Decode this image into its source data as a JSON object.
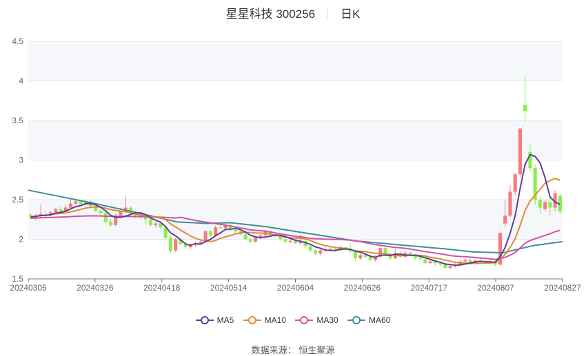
{
  "header": {
    "title": "星星科技 300256",
    "period": "日K"
  },
  "source": {
    "label": "数据来源：",
    "value": "恒生聚源"
  },
  "legend": [
    {
      "name": "MA5",
      "color": "#5b3f99"
    },
    {
      "name": "MA10",
      "color": "#e08a38"
    },
    {
      "name": "MA30",
      "color": "#d44fa2"
    },
    {
      "name": "MA60",
      "color": "#3f8f95"
    }
  ],
  "colors": {
    "up": "#f47c7c",
    "down": "#87f04b",
    "grid": "#e3e7f0",
    "band": "#f5f7fb",
    "axis": "#6e7079"
  },
  "chart_data": {
    "type": "candlestick",
    "title": "星星科技 300256 日K",
    "xlabel": "",
    "ylabel": "",
    "ylim": [
      1.5,
      4.5
    ],
    "yticks": [
      1.5,
      2,
      2.5,
      3,
      3.5,
      4,
      4.5
    ],
    "xticks": [
      "20240305",
      "20240326",
      "20240418",
      "20240514",
      "20240604",
      "20240626",
      "20240717",
      "20240807",
      "20240827"
    ],
    "legend": [
      "MA5",
      "MA10",
      "MA30",
      "MA60"
    ],
    "legend_position": "bottom",
    "grid": true,
    "candles_ohlc_note": "[open, close, low, high] approximated from pixels",
    "candles": [
      [
        2.31,
        2.28,
        2.25,
        2.33
      ],
      [
        2.27,
        2.3,
        2.24,
        2.32
      ],
      [
        2.3,
        2.32,
        2.28,
        2.44
      ],
      [
        2.32,
        2.31,
        2.28,
        2.35
      ],
      [
        2.31,
        2.34,
        2.29,
        2.36
      ],
      [
        2.34,
        2.38,
        2.32,
        2.4
      ],
      [
        2.38,
        2.35,
        2.33,
        2.42
      ],
      [
        2.35,
        2.4,
        2.34,
        2.44
      ],
      [
        2.4,
        2.45,
        2.38,
        2.52
      ],
      [
        2.45,
        2.48,
        2.43,
        2.5
      ],
      [
        2.48,
        2.44,
        2.42,
        2.5
      ],
      [
        2.44,
        2.47,
        2.42,
        2.49
      ],
      [
        2.47,
        2.42,
        2.4,
        2.5
      ],
      [
        2.42,
        2.36,
        2.34,
        2.44
      ],
      [
        2.36,
        2.33,
        2.3,
        2.38
      ],
      [
        2.33,
        2.22,
        2.2,
        2.35
      ],
      [
        2.22,
        2.18,
        2.16,
        2.26
      ],
      [
        2.18,
        2.3,
        2.17,
        2.32
      ],
      [
        2.3,
        2.36,
        2.28,
        2.4
      ],
      [
        2.36,
        2.4,
        2.33,
        2.55
      ],
      [
        2.4,
        2.33,
        2.31,
        2.42
      ],
      [
        2.33,
        2.28,
        2.26,
        2.36
      ],
      [
        2.28,
        2.3,
        2.25,
        2.32
      ],
      [
        2.3,
        2.25,
        2.18,
        2.31
      ],
      [
        2.25,
        2.18,
        2.16,
        2.27
      ],
      [
        2.18,
        2.2,
        2.15,
        2.22
      ],
      [
        2.2,
        2.15,
        2.13,
        2.22
      ],
      [
        2.15,
        2.02,
        2.0,
        2.17
      ],
      [
        2.02,
        1.85,
        1.83,
        2.05
      ],
      [
        1.86,
        2.0,
        1.84,
        2.02
      ],
      [
        2.0,
        1.94,
        1.92,
        2.02
      ],
      [
        1.94,
        1.9,
        1.88,
        1.96
      ],
      [
        1.9,
        1.93,
        1.88,
        1.95
      ],
      [
        1.93,
        1.95,
        1.9,
        1.97
      ],
      [
        1.95,
        1.97,
        1.93,
        2.0
      ],
      [
        1.97,
        2.1,
        1.96,
        2.12
      ],
      [
        2.1,
        2.05,
        2.03,
        2.12
      ],
      [
        2.05,
        2.15,
        2.04,
        2.17
      ],
      [
        2.15,
        2.14,
        2.12,
        2.18
      ],
      [
        2.14,
        2.18,
        2.12,
        2.2
      ],
      [
        2.18,
        2.12,
        2.1,
        2.2
      ],
      [
        2.12,
        2.1,
        2.08,
        2.14
      ],
      [
        2.1,
        2.06,
        2.05,
        2.12
      ],
      [
        2.06,
        2.0,
        1.98,
        2.08
      ],
      [
        2.0,
        1.97,
        1.95,
        2.02
      ],
      [
        1.97,
        2.02,
        1.96,
        2.04
      ],
      [
        2.02,
        2.05,
        2.0,
        2.07
      ],
      [
        2.05,
        2.1,
        2.03,
        2.12
      ],
      [
        2.1,
        2.06,
        2.04,
        2.12
      ],
      [
        2.06,
        2.04,
        2.02,
        2.08
      ],
      [
        2.04,
        2.0,
        1.98,
        2.06
      ],
      [
        2.0,
        1.97,
        1.95,
        2.02
      ],
      [
        1.97,
        1.98,
        1.95,
        2.0
      ],
      [
        1.98,
        1.95,
        1.94,
        2.0
      ],
      [
        1.95,
        1.98,
        1.93,
        2.06
      ],
      [
        1.98,
        1.91,
        1.89,
        2.0
      ],
      [
        1.91,
        1.86,
        1.84,
        1.93
      ],
      [
        1.86,
        1.82,
        1.8,
        1.88
      ],
      [
        1.82,
        1.86,
        1.8,
        1.88
      ],
      [
        1.86,
        1.87,
        1.84,
        1.9
      ],
      [
        1.87,
        1.88,
        1.85,
        1.9
      ],
      [
        1.88,
        1.86,
        1.84,
        1.9
      ],
      [
        1.86,
        1.9,
        1.85,
        1.92
      ],
      [
        1.9,
        1.88,
        1.86,
        1.91
      ],
      [
        1.88,
        1.85,
        1.83,
        1.95
      ],
      [
        1.85,
        1.76,
        1.72,
        1.87
      ],
      [
        1.76,
        1.8,
        1.74,
        1.82
      ],
      [
        1.8,
        1.78,
        1.76,
        1.82
      ],
      [
        1.78,
        1.74,
        1.72,
        1.8
      ],
      [
        1.74,
        1.78,
        1.72,
        1.8
      ],
      [
        1.78,
        1.89,
        1.77,
        1.91
      ],
      [
        1.89,
        1.81,
        1.79,
        1.9
      ],
      [
        1.81,
        1.76,
        1.74,
        1.83
      ],
      [
        1.76,
        1.82,
        1.75,
        1.88
      ],
      [
        1.82,
        1.78,
        1.76,
        1.85
      ],
      [
        1.78,
        1.83,
        1.76,
        1.86
      ],
      [
        1.83,
        1.8,
        1.78,
        1.85
      ],
      [
        1.8,
        1.76,
        1.74,
        1.82
      ],
      [
        1.76,
        1.75,
        1.73,
        1.78
      ],
      [
        1.75,
        1.7,
        1.68,
        1.77
      ],
      [
        1.7,
        1.72,
        1.69,
        1.74
      ],
      [
        1.72,
        1.7,
        1.66,
        1.74
      ],
      [
        1.7,
        1.68,
        1.66,
        1.72
      ],
      [
        1.68,
        1.64,
        1.62,
        1.7
      ],
      [
        1.64,
        1.66,
        1.62,
        1.68
      ],
      [
        1.66,
        1.68,
        1.64,
        1.72
      ],
      [
        1.68,
        1.72,
        1.66,
        1.74
      ],
      [
        1.72,
        1.74,
        1.7,
        1.76
      ],
      [
        1.74,
        1.7,
        1.68,
        1.76
      ],
      [
        1.7,
        1.73,
        1.68,
        1.75
      ],
      [
        1.73,
        1.72,
        1.7,
        1.78
      ],
      [
        1.72,
        1.7,
        1.68,
        1.74
      ],
      [
        1.7,
        1.72,
        1.68,
        1.75
      ],
      [
        1.72,
        1.68,
        1.66,
        1.74
      ],
      [
        1.68,
        2.08,
        1.67,
        2.1
      ],
      [
        2.2,
        2.3,
        2.15,
        2.5
      ],
      [
        2.3,
        2.6,
        2.28,
        2.68
      ],
      [
        2.6,
        2.82,
        2.55,
        2.84
      ],
      [
        2.82,
        3.4,
        2.78,
        3.4
      ],
      [
        3.7,
        3.62,
        3.48,
        4.08
      ],
      [
        3.1,
        2.9,
        2.85,
        3.2
      ],
      [
        2.9,
        2.5,
        2.44,
        2.95
      ],
      [
        2.5,
        2.4,
        2.32,
        2.55
      ],
      [
        2.38,
        2.47,
        2.35,
        2.5
      ],
      [
        2.47,
        2.4,
        2.3,
        2.52
      ],
      [
        2.4,
        2.58,
        2.36,
        2.62
      ],
      [
        2.55,
        2.35,
        2.32,
        2.57
      ]
    ],
    "series": [
      {
        "name": "MA5",
        "color": "#5b3f99"
      },
      {
        "name": "MA10",
        "color": "#e08a38"
      },
      {
        "name": "MA30",
        "color": "#d44fa2"
      },
      {
        "name": "MA60",
        "color": "#3f8f95"
      }
    ],
    "ma60_approx": [
      [
        0,
        2.62
      ],
      [
        20,
        2.47
      ],
      [
        35,
        2.35
      ],
      [
        50,
        2.22
      ],
      [
        60,
        2.2
      ],
      [
        68,
        2.21
      ],
      [
        80,
        2.16
      ],
      [
        95,
        2.07
      ],
      [
        110,
        1.98
      ],
      [
        125,
        1.93
      ],
      [
        140,
        1.88
      ],
      [
        150,
        1.84
      ],
      [
        160,
        1.83
      ],
      [
        170,
        1.92
      ],
      [
        180,
        1.97
      ]
    ]
  }
}
